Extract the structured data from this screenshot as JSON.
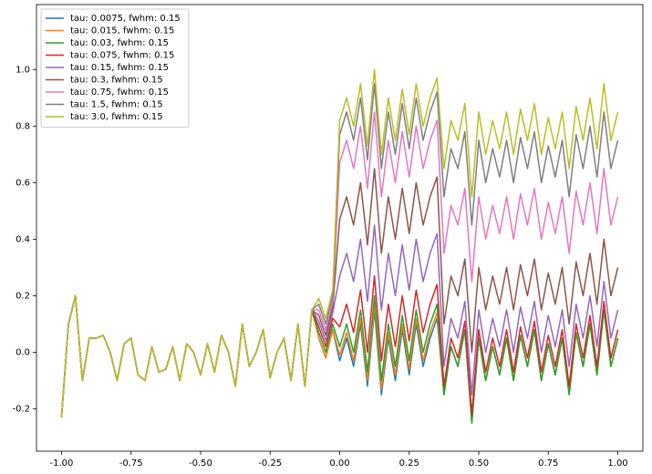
{
  "chart_data": {
    "type": "line",
    "x": [
      -1,
      -0.975,
      -0.95,
      -0.925,
      -0.9,
      -0.875,
      -0.85,
      -0.825,
      -0.8,
      -0.775,
      -0.75,
      -0.725,
      -0.7,
      -0.675,
      -0.65,
      -0.625,
      -0.6,
      -0.575,
      -0.55,
      -0.525,
      -0.5,
      -0.475,
      -0.45,
      -0.425,
      -0.4,
      -0.375,
      -0.35,
      -0.325,
      -0.3,
      -0.275,
      -0.25,
      -0.225,
      -0.2,
      -0.175,
      -0.15,
      -0.125,
      -0.1,
      -0.075,
      -0.05,
      -0.025,
      0,
      0.025,
      0.05,
      0.075,
      0.1,
      0.125,
      0.15,
      0.175,
      0.2,
      0.225,
      0.25,
      0.275,
      0.3,
      0.325,
      0.35,
      0.375,
      0.4,
      0.425,
      0.45,
      0.475,
      0.5,
      0.525,
      0.55,
      0.575,
      0.6,
      0.625,
      0.65,
      0.675,
      0.7,
      0.725,
      0.75,
      0.775,
      0.8,
      0.825,
      0.85,
      0.875,
      0.9,
      0.925,
      0.95,
      0.975,
      1
    ],
    "series": [
      {
        "name": "tau: 0.0075, fwhm: 0.15",
        "color": "#1f77b4",
        "values": [
          -0.23,
          0.1,
          0.2,
          -0.1,
          0.05,
          0.05,
          0.06,
          0,
          -0.1,
          0.03,
          0.05,
          -0.08,
          -0.1,
          0.02,
          -0.07,
          -0.06,
          0.02,
          -0.1,
          0.03,
          0,
          -0.08,
          0.03,
          -0.07,
          0.06,
          0,
          -0.12,
          0.1,
          -0.05,
          0,
          0.08,
          -0.09,
          0,
          0.05,
          -0.1,
          0.1,
          -0.12,
          0.15,
          0.05,
          -0.02,
          0.08,
          -0.03,
          0.05,
          -0.05,
          0.1,
          -0.12,
          0.15,
          -0.15,
          0.05,
          -0.1,
          0.08,
          -0.08,
          0.1,
          -0.05,
          0.05,
          0.12,
          -0.15,
          0.02,
          -0.05,
          0.08,
          -0.25,
          0.05,
          -0.1,
          0.02,
          -0.08,
          0.05,
          -0.1,
          0.06,
          -0.05,
          0.08,
          -0.1,
          0.03,
          -0.08,
          0.05,
          -0.15,
          0.07,
          -0.05,
          0.1,
          -0.08,
          0.15,
          -0.05,
          0.05
        ]
      },
      {
        "name": "tau: 0.015, fwhm: 0.15",
        "color": "#ff7f0e",
        "values": [
          -0.23,
          0.1,
          0.2,
          -0.1,
          0.05,
          0.05,
          0.06,
          0,
          -0.1,
          0.03,
          0.05,
          -0.08,
          -0.1,
          0.02,
          -0.07,
          -0.06,
          0.02,
          -0.1,
          0.03,
          0,
          -0.08,
          0.03,
          -0.07,
          0.06,
          0,
          -0.12,
          0.1,
          -0.05,
          0,
          0.08,
          -0.09,
          0,
          0.05,
          -0.1,
          0.1,
          -0.12,
          0.15,
          0.05,
          -0.02,
          0.08,
          -0.01,
          0.07,
          -0.03,
          0.12,
          -0.1,
          0.17,
          -0.13,
          0.07,
          -0.08,
          0.1,
          -0.06,
          0.12,
          -0.03,
          0.07,
          0.14,
          -0.15,
          0.02,
          -0.05,
          0.08,
          -0.25,
          0.05,
          -0.1,
          0.02,
          -0.08,
          0.05,
          -0.1,
          0.06,
          -0.05,
          0.08,
          -0.1,
          0.03,
          -0.08,
          0.05,
          -0.15,
          0.07,
          -0.05,
          0.1,
          -0.08,
          0.15,
          -0.05,
          0.05
        ]
      },
      {
        "name": "tau: 0.03, fwhm: 0.15",
        "color": "#2ca02c",
        "values": [
          -0.23,
          0.1,
          0.2,
          -0.1,
          0.05,
          0.05,
          0.06,
          0,
          -0.1,
          0.03,
          0.05,
          -0.08,
          -0.1,
          0.02,
          -0.07,
          -0.06,
          0.02,
          -0.1,
          0.03,
          0,
          -0.08,
          0.03,
          -0.07,
          0.06,
          0,
          -0.12,
          0.1,
          -0.05,
          0,
          0.08,
          -0.09,
          0,
          0.05,
          -0.1,
          0.1,
          -0.12,
          0.15,
          0.07,
          0,
          0.1,
          0.02,
          0.1,
          0,
          0.15,
          -0.07,
          0.2,
          -0.1,
          0.1,
          -0.05,
          0.13,
          -0.03,
          0.15,
          0,
          0.1,
          0.17,
          -0.15,
          0.02,
          -0.05,
          0.08,
          -0.25,
          0.05,
          -0.1,
          0.02,
          -0.08,
          0.05,
          -0.1,
          0.06,
          -0.05,
          0.08,
          -0.1,
          0.03,
          -0.08,
          0.05,
          -0.15,
          0.07,
          -0.05,
          0.1,
          -0.08,
          0.15,
          -0.05,
          0.05
        ]
      },
      {
        "name": "tau: 0.075, fwhm: 0.15",
        "color": "#d62728",
        "values": [
          -0.23,
          0.1,
          0.2,
          -0.1,
          0.05,
          0.05,
          0.06,
          0,
          -0.1,
          0.03,
          0.05,
          -0.08,
          -0.1,
          0.02,
          -0.07,
          -0.06,
          0.02,
          -0.1,
          0.03,
          0,
          -0.08,
          0.03,
          -0.07,
          0.06,
          0,
          -0.12,
          0.1,
          -0.05,
          0,
          0.08,
          -0.09,
          0,
          0.05,
          -0.1,
          0.1,
          -0.12,
          0.15,
          0.09,
          0.02,
          0.12,
          0.09,
          0.17,
          0.07,
          0.22,
          0,
          0.27,
          -0.03,
          0.17,
          0.02,
          0.2,
          0.04,
          0.22,
          0.07,
          0.17,
          0.24,
          -0.12,
          0.05,
          -0.02,
          0.11,
          -0.22,
          0.08,
          -0.07,
          0.05,
          -0.05,
          0.08,
          -0.07,
          0.09,
          -0.02,
          0.11,
          -0.07,
          0.06,
          -0.05,
          0.08,
          -0.12,
          0.1,
          -0.02,
          0.13,
          -0.05,
          0.18,
          -0.02,
          0.08
        ]
      },
      {
        "name": "tau: 0.15, fwhm: 0.15",
        "color": "#9467bd",
        "values": [
          -0.23,
          0.1,
          0.2,
          -0.1,
          0.05,
          0.05,
          0.06,
          0,
          -0.1,
          0.03,
          0.05,
          -0.08,
          -0.1,
          0.02,
          -0.07,
          -0.06,
          0.02,
          -0.1,
          0.03,
          0,
          -0.08,
          0.03,
          -0.07,
          0.06,
          0,
          -0.12,
          0.1,
          -0.05,
          0,
          0.08,
          -0.09,
          0,
          0.05,
          -0.1,
          0.1,
          -0.12,
          0.15,
          0.11,
          0.04,
          0.14,
          0.27,
          0.35,
          0.25,
          0.4,
          0.18,
          0.45,
          0.15,
          0.35,
          0.2,
          0.38,
          0.22,
          0.4,
          0.25,
          0.35,
          0.42,
          -0.05,
          0.12,
          0.05,
          0.18,
          -0.15,
          0.15,
          0,
          0.12,
          0.02,
          0.15,
          0,
          0.16,
          0.05,
          0.18,
          0,
          0.13,
          0.02,
          0.15,
          -0.05,
          0.17,
          0.05,
          0.2,
          0.02,
          0.25,
          0.05,
          0.15
        ]
      },
      {
        "name": "tau: 0.3, fwhm: 0.15",
        "color": "#8c564b",
        "values": [
          -0.23,
          0.1,
          0.2,
          -0.1,
          0.05,
          0.05,
          0.06,
          0,
          -0.1,
          0.03,
          0.05,
          -0.08,
          -0.1,
          0.02,
          -0.07,
          -0.06,
          0.02,
          -0.1,
          0.03,
          0,
          -0.08,
          0.03,
          -0.07,
          0.06,
          0,
          -0.12,
          0.1,
          -0.05,
          0,
          0.08,
          -0.09,
          0,
          0.05,
          -0.1,
          0.1,
          -0.12,
          0.15,
          0.13,
          0.06,
          0.16,
          0.47,
          0.55,
          0.45,
          0.6,
          0.38,
          0.65,
          0.35,
          0.55,
          0.4,
          0.58,
          0.42,
          0.6,
          0.45,
          0.55,
          0.62,
          0.1,
          0.27,
          0.2,
          0.33,
          0,
          0.3,
          0.15,
          0.27,
          0.17,
          0.3,
          0.15,
          0.31,
          0.2,
          0.33,
          0.15,
          0.28,
          0.17,
          0.3,
          0.1,
          0.32,
          0.2,
          0.35,
          0.17,
          0.4,
          0.2,
          0.3
        ]
      },
      {
        "name": "tau: 0.75, fwhm: 0.15",
        "color": "#e377c2",
        "values": [
          -0.23,
          0.1,
          0.2,
          -0.1,
          0.05,
          0.05,
          0.06,
          0,
          -0.1,
          0.03,
          0.05,
          -0.08,
          -0.1,
          0.02,
          -0.07,
          -0.06,
          0.02,
          -0.1,
          0.03,
          0,
          -0.08,
          0.03,
          -0.07,
          0.06,
          0,
          -0.12,
          0.1,
          -0.05,
          0,
          0.08,
          -0.09,
          0,
          0.05,
          -0.1,
          0.1,
          -0.12,
          0.15,
          0.15,
          0.08,
          0.18,
          0.67,
          0.75,
          0.65,
          0.8,
          0.58,
          0.85,
          0.55,
          0.75,
          0.6,
          0.78,
          0.62,
          0.8,
          0.65,
          0.75,
          0.82,
          0.35,
          0.52,
          0.45,
          0.58,
          0.25,
          0.55,
          0.4,
          0.52,
          0.42,
          0.55,
          0.4,
          0.56,
          0.45,
          0.58,
          0.4,
          0.53,
          0.42,
          0.55,
          0.35,
          0.57,
          0.45,
          0.6,
          0.42,
          0.65,
          0.45,
          0.55
        ]
      },
      {
        "name": "tau: 1.5, fwhm: 0.15",
        "color": "#7f7f7f",
        "values": [
          -0.23,
          0.1,
          0.2,
          -0.1,
          0.05,
          0.05,
          0.06,
          0,
          -0.1,
          0.03,
          0.05,
          -0.08,
          -0.1,
          0.02,
          -0.07,
          -0.06,
          0.02,
          -0.1,
          0.03,
          0,
          -0.08,
          0.03,
          -0.07,
          0.06,
          0,
          -0.12,
          0.1,
          -0.05,
          0,
          0.08,
          -0.09,
          0,
          0.05,
          -0.1,
          0.1,
          -0.12,
          0.15,
          0.17,
          0.1,
          0.2,
          0.77,
          0.85,
          0.75,
          0.9,
          0.68,
          0.95,
          0.65,
          0.85,
          0.7,
          0.88,
          0.72,
          0.9,
          0.75,
          0.85,
          0.92,
          0.55,
          0.72,
          0.65,
          0.78,
          0.45,
          0.75,
          0.6,
          0.72,
          0.62,
          0.75,
          0.6,
          0.76,
          0.65,
          0.78,
          0.6,
          0.73,
          0.62,
          0.75,
          0.55,
          0.77,
          0.65,
          0.8,
          0.62,
          0.85,
          0.65,
          0.75
        ]
      },
      {
        "name": "tau: 3.0, fwhm: 0.15",
        "color": "#bcbd22",
        "values": [
          -0.23,
          0.1,
          0.2,
          -0.1,
          0.05,
          0.05,
          0.06,
          0,
          -0.1,
          0.03,
          0.05,
          -0.08,
          -0.1,
          0.02,
          -0.07,
          -0.06,
          0.02,
          -0.1,
          0.03,
          0,
          -0.08,
          0.03,
          -0.07,
          0.06,
          0,
          -0.12,
          0.1,
          -0.05,
          0,
          0.08,
          -0.09,
          0,
          0.05,
          -0.1,
          0.1,
          -0.12,
          0.15,
          0.19,
          0.12,
          0.22,
          0.82,
          0.9,
          0.8,
          0.95,
          0.73,
          1.0,
          0.7,
          0.9,
          0.75,
          0.93,
          0.77,
          0.95,
          0.8,
          0.9,
          0.97,
          0.65,
          0.82,
          0.75,
          0.88,
          0.55,
          0.85,
          0.7,
          0.82,
          0.72,
          0.85,
          0.7,
          0.86,
          0.75,
          0.88,
          0.7,
          0.83,
          0.72,
          0.85,
          0.65,
          0.87,
          0.75,
          0.9,
          0.72,
          0.95,
          0.75,
          0.85
        ]
      }
    ],
    "xlim": [
      -1.09,
      1.09
    ],
    "ylim": [
      -0.35,
      1.23
    ],
    "xticks": [
      {
        "value": -1,
        "label": "-1.00"
      },
      -0.75,
      {
        "value": -0.5,
        "label": "-0.50"
      },
      -0.25,
      {
        "value": 0,
        "label": "0.00"
      },
      0.25,
      {
        "value": 0.5,
        "label": "0.50"
      },
      0.75,
      {
        "value": 1,
        "label": "1.00"
      }
    ],
    "yticks": [
      -0.2,
      {
        "value": 0,
        "label": "0.0"
      },
      0.2,
      0.4,
      0.6,
      0.8,
      {
        "value": 1,
        "label": "1.0"
      }
    ],
    "legend": "upper left",
    "grid": false
  }
}
